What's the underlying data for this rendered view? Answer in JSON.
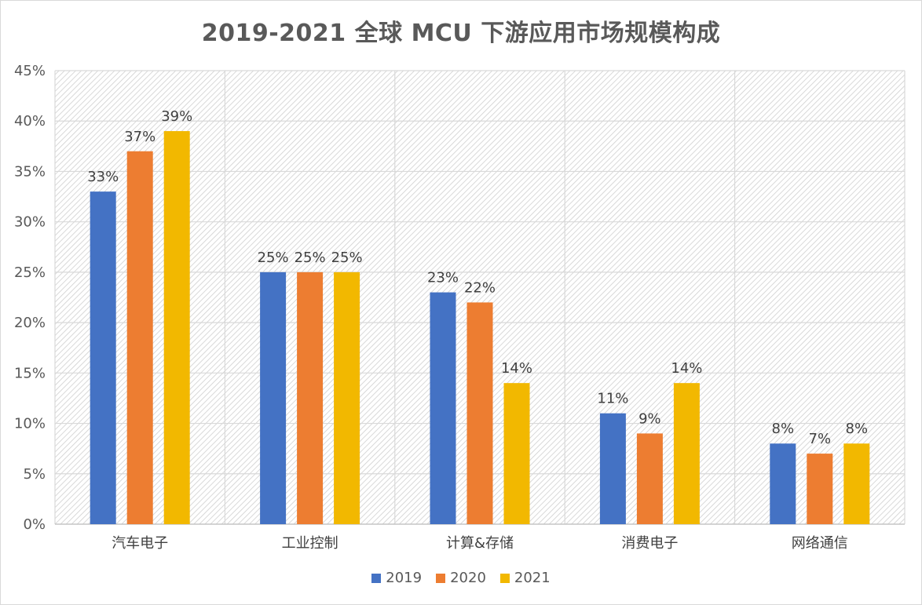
{
  "chart_data": {
    "type": "bar",
    "title": "2019-2021 全球 MCU 下游应用市场规模构成",
    "categories": [
      "汽车电子",
      "工业控制",
      "计算&存储",
      "消费电子",
      "网络通信"
    ],
    "series": [
      {
        "name": "2019",
        "color": "#4472c4",
        "values": [
          33,
          25,
          23,
          11,
          8
        ]
      },
      {
        "name": "2020",
        "color": "#ed7d31",
        "values": [
          37,
          25,
          22,
          9,
          7
        ]
      },
      {
        "name": "2021",
        "color": "#f2b800",
        "values": [
          39,
          25,
          14,
          14,
          8
        ]
      }
    ],
    "value_suffix": "%",
    "ylim": [
      0,
      45
    ],
    "yticks": [
      "0%",
      "5%",
      "10%",
      "15%",
      "20%",
      "25%",
      "30%",
      "35%",
      "40%",
      "45%"
    ],
    "ytick_values": [
      0,
      5,
      10,
      15,
      20,
      25,
      30,
      35,
      40,
      45
    ],
    "grid": true,
    "legend_position": "bottom"
  }
}
